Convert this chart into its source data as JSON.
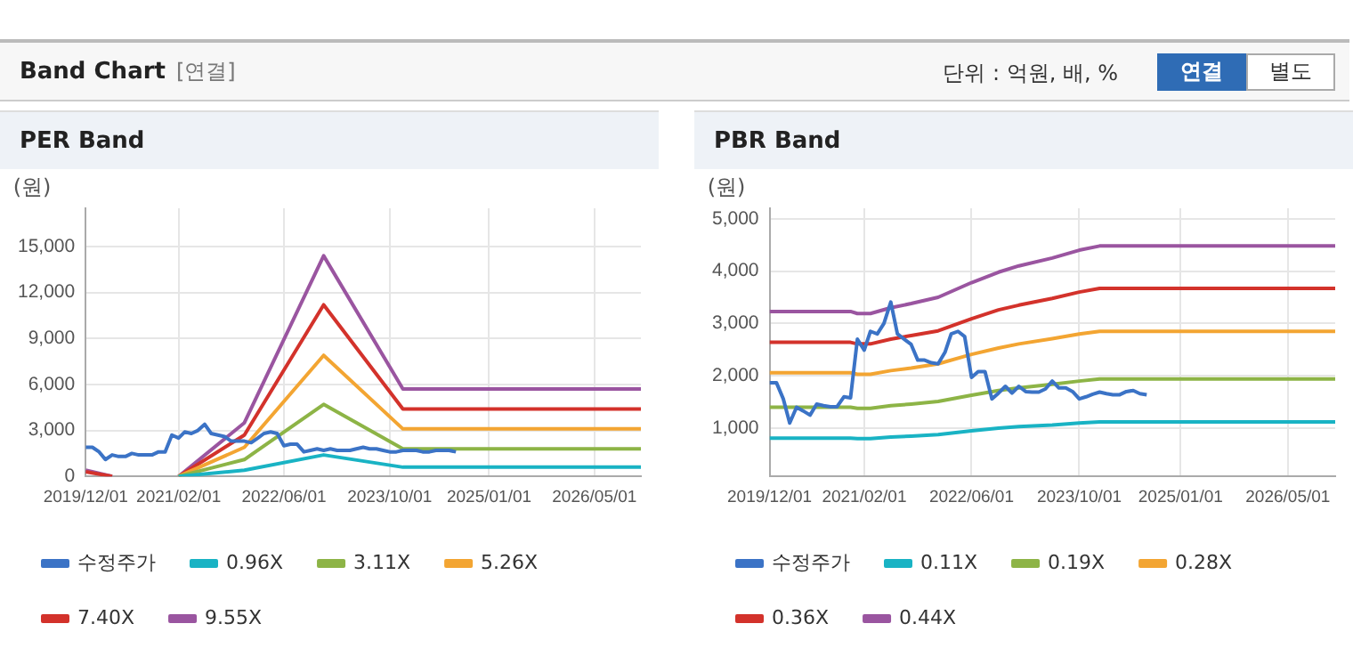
{
  "chart_data": [
    {
      "type": "line",
      "title": "PER Band",
      "ylabel": "(원)",
      "annotations": [
        "Band Chart",
        "[연결]",
        "단위 : 억원, 배, %",
        "연결",
        "별도"
      ],
      "x": [
        "2019-12-01",
        "2020-04-01",
        "2020-06-01",
        "2021-02-01",
        "2021-12-01",
        "2022-12-01",
        "2023-12-01",
        "2026-12-01"
      ],
      "xlim": [
        "2019-12-01",
        "2026-12-01"
      ],
      "xticks": [
        {
          "value": "2019-12-01",
          "label": "2019/12/01"
        },
        {
          "value": "2021-02-01",
          "label": "2021/02/01"
        },
        {
          "value": "2022-06-01",
          "label": "2022/06/01"
        },
        {
          "value": "2023-10-01",
          "label": "2023/10/01"
        },
        {
          "value": "2025-01-01",
          "label": "2025/01/01"
        },
        {
          "value": "2026-05-01",
          "label": "2026/05/01"
        }
      ],
      "ylim": [
        0,
        17500
      ],
      "yticks": [
        {
          "value": 0,
          "label": "0"
        },
        {
          "value": 3000,
          "label": "3,000"
        },
        {
          "value": 6000,
          "label": "6,000"
        },
        {
          "value": 9000,
          "label": "9,000"
        },
        {
          "value": 12000,
          "label": "12,000"
        },
        {
          "value": 15000,
          "label": "15,000"
        }
      ],
      "grid": true,
      "legend": "bottom",
      "marker": "none",
      "line_style": "solid",
      "series": [
        {
          "name": "수정주가",
          "color": "#3b73c6",
          "x": [
            "2019-12-01",
            "2020-01-01",
            "2020-02-01",
            "2020-03-01",
            "2020-04-01",
            "2020-05-01",
            "2020-06-01",
            "2020-07-01",
            "2020-08-01",
            "2020-09-01",
            "2020-10-01",
            "2020-11-01",
            "2020-12-01",
            "2021-01-01",
            "2021-02-01",
            "2021-03-01",
            "2021-04-01",
            "2021-05-01",
            "2021-06-01",
            "2021-07-01",
            "2021-08-01",
            "2021-09-01",
            "2021-10-01",
            "2021-11-01",
            "2021-12-01",
            "2022-01-01",
            "2022-02-01",
            "2022-03-01",
            "2022-04-01",
            "2022-05-01",
            "2022-06-01",
            "2022-07-01",
            "2022-08-01",
            "2022-09-01",
            "2022-10-01",
            "2022-11-01",
            "2022-12-01",
            "2023-01-01",
            "2023-02-01",
            "2023-03-01",
            "2023-04-01",
            "2023-05-01",
            "2023-06-01",
            "2023-07-01",
            "2023-08-01",
            "2023-09-01",
            "2023-10-01",
            "2023-11-01",
            "2023-12-01",
            "2024-01-01",
            "2024-02-01",
            "2024-03-01",
            "2024-04-01",
            "2024-05-01",
            "2024-06-01",
            "2024-07-01",
            "2024-08-01"
          ],
          "values": [
            1900,
            1900,
            1600,
            1100,
            1400,
            1300,
            1300,
            1500,
            1400,
            1400,
            1400,
            1600,
            1600,
            2700,
            2500,
            2900,
            2800,
            3000,
            3400,
            2800,
            2700,
            2600,
            2300,
            2300,
            2300,
            2200,
            2500,
            2800,
            2900,
            2800,
            2000,
            2100,
            2100,
            1600,
            1700,
            1800,
            1700,
            1800,
            1700,
            1700,
            1700,
            1800,
            1900,
            1800,
            1800,
            1700,
            1600,
            1600,
            1700,
            1700,
            1700,
            1600,
            1600,
            1700,
            1700,
            1700,
            1600
          ]
        },
        {
          "name": "0.96X",
          "color": "#19b3c4",
          "values": [
            null,
            null,
            null,
            0,
            400,
            1400,
            600,
            600
          ]
        },
        {
          "name": "3.11X",
          "color": "#8db446",
          "values": [
            null,
            null,
            null,
            0,
            1100,
            4700,
            1800,
            1800
          ]
        },
        {
          "name": "5.26X",
          "color": "#f3a532",
          "values": [
            null,
            null,
            null,
            0,
            1900,
            7900,
            3100,
            3100
          ]
        },
        {
          "name": "7.40X",
          "color": "#d3322b",
          "values": [
            300,
            0,
            null,
            0,
            2700,
            11200,
            4400,
            4400
          ]
        },
        {
          "name": "9.55X",
          "color": "#9a55a0",
          "values": [
            400,
            0,
            null,
            0,
            3500,
            14400,
            5700,
            5700
          ]
        }
      ]
    },
    {
      "type": "line",
      "title": "PBR Band",
      "ylabel": "(원)",
      "x": [
        "2019-12-01",
        "2020-12-01",
        "2021-01-01",
        "2021-03-01",
        "2021-06-01",
        "2021-09-01",
        "2022-01-01",
        "2022-06-01",
        "2022-10-01",
        "2023-01-01",
        "2023-06-01",
        "2023-10-01",
        "2024-01-01",
        "2026-12-01"
      ],
      "xlim": [
        "2019-12-01",
        "2026-12-01"
      ],
      "xticks": [
        {
          "value": "2019-12-01",
          "label": "2019/12/01"
        },
        {
          "value": "2021-02-01",
          "label": "2021/02/01"
        },
        {
          "value": "2022-06-01",
          "label": "2022/06/01"
        },
        {
          "value": "2023-10-01",
          "label": "2023/10/01"
        },
        {
          "value": "2025-01-01",
          "label": "2025/01/01"
        },
        {
          "value": "2026-05-01",
          "label": "2026/05/01"
        }
      ],
      "ylim": [
        80,
        5200
      ],
      "yticks": [
        {
          "value": 1000,
          "label": "1,000"
        },
        {
          "value": 2000,
          "label": "2,000"
        },
        {
          "value": 3000,
          "label": "3,000"
        },
        {
          "value": 4000,
          "label": "4,000"
        },
        {
          "value": 5000,
          "label": "5,000"
        }
      ],
      "grid": true,
      "legend": "bottom",
      "marker": "none",
      "line_style": "solid",
      "series": [
        {
          "name": "수정주가",
          "color": "#3b73c6",
          "x": [
            "2019-12-01",
            "2020-01-01",
            "2020-02-01",
            "2020-03-01",
            "2020-04-01",
            "2020-05-01",
            "2020-06-01",
            "2020-07-01",
            "2020-08-01",
            "2020-09-01",
            "2020-10-01",
            "2020-11-01",
            "2020-12-01",
            "2021-01-01",
            "2021-02-01",
            "2021-03-01",
            "2021-04-01",
            "2021-05-01",
            "2021-06-01",
            "2021-07-01",
            "2021-08-01",
            "2021-09-01",
            "2021-10-01",
            "2021-11-01",
            "2021-12-01",
            "2022-01-01",
            "2022-02-01",
            "2022-03-01",
            "2022-04-01",
            "2022-05-01",
            "2022-06-01",
            "2022-07-01",
            "2022-08-01",
            "2022-09-01",
            "2022-10-01",
            "2022-11-01",
            "2022-12-01",
            "2023-01-01",
            "2023-02-01",
            "2023-03-01",
            "2023-04-01",
            "2023-05-01",
            "2023-06-01",
            "2023-07-01",
            "2023-08-01",
            "2023-09-01",
            "2023-10-01",
            "2023-11-01",
            "2023-12-01",
            "2024-01-01",
            "2024-02-01",
            "2024-03-01",
            "2024-04-01",
            "2024-05-01",
            "2024-06-01",
            "2024-07-01",
            "2024-08-01"
          ],
          "values": [
            1870,
            1870,
            1560,
            1100,
            1400,
            1330,
            1250,
            1460,
            1430,
            1410,
            1410,
            1600,
            1580,
            2700,
            2490,
            2850,
            2800,
            3000,
            3410,
            2800,
            2700,
            2600,
            2300,
            2300,
            2250,
            2230,
            2450,
            2800,
            2850,
            2750,
            1970,
            2080,
            2080,
            1560,
            1670,
            1800,
            1670,
            1800,
            1700,
            1690,
            1690,
            1750,
            1900,
            1770,
            1770,
            1700,
            1560,
            1600,
            1650,
            1690,
            1660,
            1640,
            1640,
            1700,
            1720,
            1660,
            1640
          ]
        },
        {
          "name": "0.11X",
          "color": "#19b3c4",
          "values": [
            810,
            810,
            800,
            800,
            830,
            850,
            880,
            950,
            1000,
            1030,
            1060,
            1100,
            1120,
            1120
          ]
        },
        {
          "name": "0.19X",
          "color": "#8db446",
          "values": [
            1400,
            1400,
            1380,
            1380,
            1430,
            1460,
            1510,
            1630,
            1720,
            1770,
            1840,
            1900,
            1940,
            1940
          ]
        },
        {
          "name": "0.28X",
          "color": "#f3a532",
          "values": [
            2060,
            2060,
            2030,
            2030,
            2100,
            2150,
            2230,
            2410,
            2530,
            2610,
            2710,
            2800,
            2850,
            2850
          ]
        },
        {
          "name": "0.36X",
          "color": "#d3322b",
          "values": [
            2640,
            2640,
            2610,
            2610,
            2700,
            2770,
            2860,
            3090,
            3260,
            3350,
            3480,
            3600,
            3670,
            3670
          ]
        },
        {
          "name": "0.44X",
          "color": "#9a55a0",
          "values": [
            3230,
            3230,
            3190,
            3190,
            3300,
            3380,
            3500,
            3780,
            3980,
            4100,
            4250,
            4400,
            4480,
            4480
          ]
        }
      ]
    }
  ]
}
